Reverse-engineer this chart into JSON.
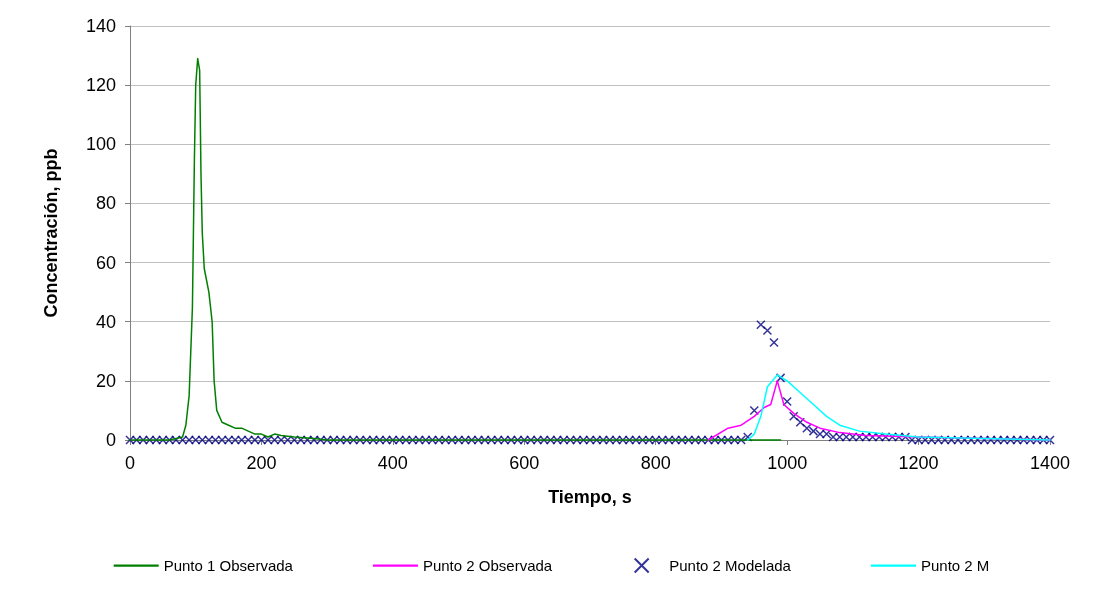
{
  "chart_data": {
    "type": "line",
    "xlabel": "Tiempo, s",
    "ylabel": "Concentración, ppb",
    "xlim": [
      0,
      1400
    ],
    "xticks": [
      0,
      200,
      400,
      600,
      800,
      1000,
      1200,
      1400
    ],
    "ylim": [
      0,
      140
    ],
    "yticks": [
      0,
      20,
      40,
      60,
      80,
      100,
      120,
      140
    ],
    "grid": "y",
    "legend": "bottom",
    "marker": "none",
    "line_style": "solid",
    "series": [
      {
        "name": "Punto 1 Observada",
        "color": "#008000",
        "x": [
          0,
          60,
          80,
          85,
          90,
          95,
          98,
          100,
          103,
          106,
          108,
          110,
          113,
          120,
          125,
          128,
          132,
          140,
          150,
          160,
          170,
          180,
          190,
          200,
          210,
          220,
          230,
          250,
          280,
          300,
          990
        ],
        "values": [
          0,
          0,
          1,
          5,
          15,
          45,
          95,
          120,
          129,
          125,
          90,
          70,
          58,
          50,
          40,
          20,
          10,
          6,
          5,
          4,
          4,
          3,
          2,
          2,
          1,
          2,
          1.5,
          1,
          0.5,
          0,
          0
        ]
      },
      {
        "name": "Punto 2 Observada",
        "color": "#ff00ff",
        "x": [
          880,
          910,
          930,
          950,
          965,
          975,
          985,
          995,
          1010,
          1030,
          1050,
          1080,
          1120,
          1200,
          1300,
          1400
        ],
        "values": [
          0,
          4,
          5,
          8,
          11,
          12,
          20,
          12,
          9,
          6,
          4,
          2.5,
          1.5,
          1,
          0.5,
          0
        ]
      },
      {
        "name": "Punto 2 Modelada",
        "type": "scatter",
        "marker": "cross",
        "color": "#000080",
        "x": [
          0,
          10,
          20,
          30,
          40,
          50,
          60,
          70,
          80,
          90,
          100,
          110,
          120,
          130,
          140,
          150,
          160,
          170,
          180,
          190,
          200,
          210,
          220,
          230,
          240,
          250,
          260,
          270,
          280,
          290,
          300,
          310,
          320,
          330,
          340,
          350,
          360,
          370,
          380,
          390,
          400,
          410,
          420,
          430,
          440,
          450,
          460,
          470,
          480,
          490,
          500,
          510,
          520,
          530,
          540,
          550,
          560,
          570,
          580,
          590,
          600,
          610,
          620,
          630,
          640,
          650,
          660,
          670,
          680,
          690,
          700,
          710,
          720,
          730,
          740,
          750,
          760,
          770,
          780,
          790,
          800,
          810,
          820,
          830,
          840,
          850,
          860,
          870,
          880,
          890,
          900,
          910,
          920,
          930,
          940,
          950,
          960,
          970,
          980,
          990,
          1000,
          1010,
          1020,
          1030,
          1040,
          1050,
          1060,
          1070,
          1080,
          1090,
          1100,
          1110,
          1120,
          1130,
          1140,
          1150,
          1160,
          1170,
          1180,
          1190,
          1200,
          1210,
          1220,
          1230,
          1240,
          1250,
          1260,
          1270,
          1280,
          1290,
          1300,
          1310,
          1320,
          1330,
          1340,
          1350,
          1360,
          1370,
          1380,
          1390,
          1400
        ],
        "values": [
          0,
          0,
          0,
          0,
          0,
          0,
          0,
          0,
          0,
          0,
          0,
          0,
          0,
          0,
          0,
          0,
          0,
          0,
          0,
          0,
          0,
          0,
          0,
          0,
          0,
          0,
          0,
          0,
          0,
          0,
          0,
          0,
          0,
          0,
          0,
          0,
          0,
          0,
          0,
          0,
          0,
          0,
          0,
          0,
          0,
          0,
          0,
          0,
          0,
          0,
          0,
          0,
          0,
          0,
          0,
          0,
          0,
          0,
          0,
          0,
          0,
          0,
          0,
          0,
          0,
          0,
          0,
          0,
          0,
          0,
          0,
          0,
          0,
          0,
          0,
          0,
          0,
          0,
          0,
          0,
          0,
          0,
          0,
          0,
          0,
          0,
          0,
          0,
          0,
          0,
          0,
          0,
          0,
          0,
          1,
          10,
          39,
          37,
          33,
          21,
          13,
          8,
          6,
          4,
          3,
          2,
          2,
          1,
          1,
          1,
          1,
          1,
          1,
          1,
          1,
          1,
          1,
          1,
          1,
          0,
          0,
          0,
          0,
          0,
          0,
          0,
          0,
          0,
          0,
          0,
          0,
          0,
          0,
          0,
          0,
          0,
          0,
          0,
          0,
          0,
          0
        ]
      },
      {
        "name": "Punto 2 M",
        "color": "#00ffff",
        "x": [
          940,
          950,
          960,
          970,
          985,
          1000,
          1020,
          1040,
          1060,
          1080,
          1110,
          1150,
          1200,
          1300,
          1400
        ],
        "values": [
          0,
          2,
          8,
          18,
          22,
          20,
          16,
          12,
          8,
          5,
          3,
          2,
          1,
          0.5,
          0
        ]
      }
    ]
  }
}
